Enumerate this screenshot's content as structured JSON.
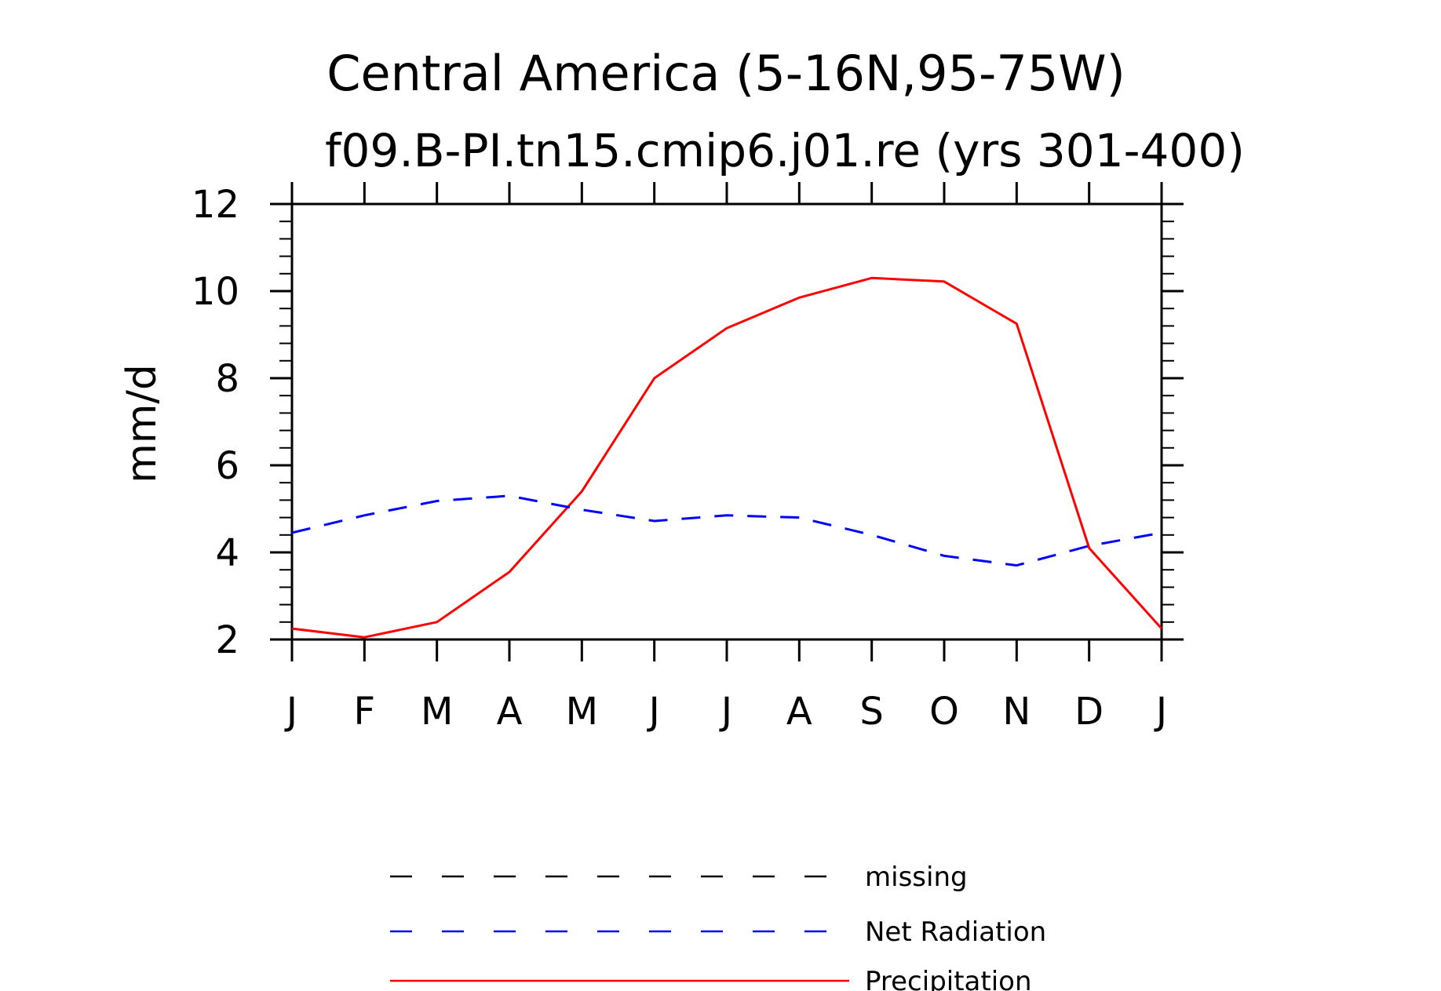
{
  "chart_data": {
    "type": "line",
    "title": "Central America (5-16N,95-75W)",
    "subtitle": "f09.B-PI.tn15.cmip6.j01.re (yrs 301-400)",
    "xlabel": "",
    "ylabel": "mm/d",
    "categories": [
      "J",
      "F",
      "M",
      "A",
      "M",
      "J",
      "J",
      "A",
      "S",
      "O",
      "N",
      "D",
      "J"
    ],
    "ylim": [
      2,
      12
    ],
    "yticks": [
      "2",
      "4",
      "6",
      "8",
      "10",
      "12"
    ],
    "grid": false,
    "legend_position": "bottom",
    "series": [
      {
        "name": "Precipitation",
        "color": "#ff0000",
        "style": "solid",
        "values": [
          2.25,
          2.05,
          2.4,
          3.55,
          5.4,
          8.0,
          9.15,
          9.85,
          10.3,
          10.22,
          9.25,
          4.1,
          2.25
        ]
      },
      {
        "name": "Net Radiation",
        "color": "#0000ff",
        "style": "dashed",
        "values": [
          4.45,
          4.85,
          5.18,
          5.3,
          4.98,
          4.72,
          4.85,
          4.8,
          4.4,
          3.92,
          3.7,
          4.15,
          4.45
        ]
      }
    ],
    "legend": [
      {
        "label": "missing",
        "color": "#000000",
        "style": "dashed"
      },
      {
        "label": "Net Radiation",
        "color": "#0000ff",
        "style": "dashed"
      },
      {
        "label": "Precipitation",
        "color": "#ff0000",
        "style": "solid"
      }
    ]
  }
}
